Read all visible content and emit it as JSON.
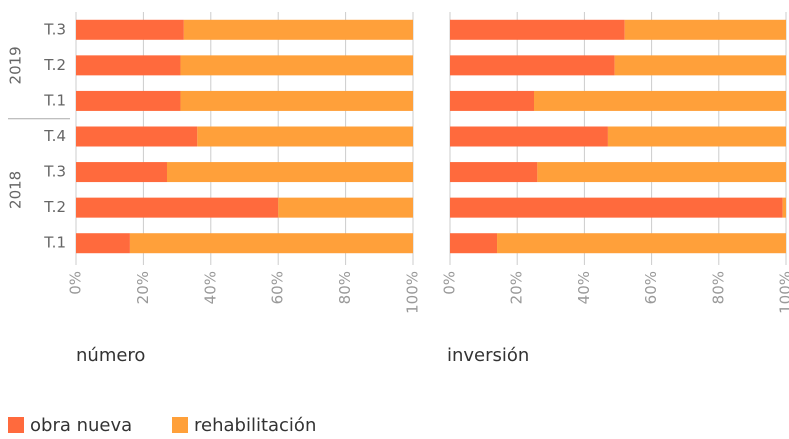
{
  "chart_data": [
    {
      "type": "bar",
      "orientation": "horizontal",
      "stacked": true,
      "title": "número",
      "groups": [
        {
          "name": "2019",
          "categories": [
            "T.3",
            "T.2",
            "T.1"
          ]
        },
        {
          "name": "2018",
          "categories": [
            "T.4",
            "T.3",
            "T.2",
            "T.1"
          ]
        }
      ],
      "series": [
        {
          "name": "obra nueva",
          "color": "#ff6a3d",
          "values": [
            32,
            31,
            31,
            36,
            27,
            60,
            16
          ]
        },
        {
          "name": "rehabilitación",
          "color": "#ffa03a",
          "values": [
            68,
            69,
            69,
            64,
            73,
            40,
            84
          ]
        }
      ],
      "xlim": [
        0,
        100
      ],
      "xticks": [
        {
          "value": 0,
          "label": "0%"
        },
        {
          "value": 20,
          "label": "20%"
        },
        {
          "value": 40,
          "label": "40%"
        },
        {
          "value": 60,
          "label": "60%"
        },
        {
          "value": 80,
          "label": "80%"
        },
        {
          "value": 100,
          "label": "100%"
        }
      ],
      "grid": true
    },
    {
      "type": "bar",
      "orientation": "horizontal",
      "stacked": true,
      "title": "inversión",
      "series": [
        {
          "color": "#ff6a3d",
          "values": [
            52,
            49,
            25,
            47,
            26,
            99,
            14
          ]
        },
        {
          "color": "#ffa03a",
          "values": [
            48,
            51,
            75,
            53,
            74,
            1,
            86
          ]
        }
      ],
      "xlim": [
        0,
        100
      ],
      "xticks": [
        {
          "value": 0,
          "label": "0%"
        },
        {
          "value": 20,
          "label": "20%"
        },
        {
          "value": 40,
          "label": "40%"
        },
        {
          "value": 60,
          "label": "60%"
        },
        {
          "value": 80,
          "label": "80%"
        },
        {
          "value": 100,
          "label": "100%"
        }
      ],
      "grid": true
    }
  ]
}
